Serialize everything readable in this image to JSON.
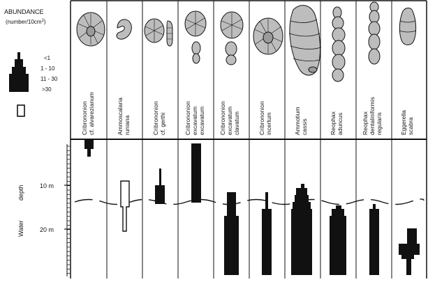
{
  "legend": {
    "title_line1": "ABUNDANCE",
    "title_line2": "(number/10cm",
    "title_sup": "2",
    "title_close": ")",
    "classes": [
      "<1",
      "1 - 10",
      "11 - 30",
      ">30"
    ]
  },
  "axis": {
    "label_water": "Water",
    "label_depth": "depth",
    "ticks": [
      "10 m",
      "20 m"
    ]
  },
  "species": [
    {
      "genus": "Cribrononion",
      "epithet": "cf. alvarezianum"
    },
    {
      "genus": "Ammoscalaria",
      "epithet": "runiana"
    },
    {
      "genus": "Cribrononion",
      "epithet": "cf. gerthi"
    },
    {
      "genus": "Cribrononion",
      "epithet": "excavatum",
      "epithet2": "excavatum"
    },
    {
      "genus": "Cribrononion",
      "epithet": "excavatum",
      "epithet2": "clavatum"
    },
    {
      "genus": "Cribrononion",
      "epithet": "incertum"
    },
    {
      "genus": "Ammotium",
      "epithet": "cassis"
    },
    {
      "genus": "Reophax",
      "epithet": "aduncus"
    },
    {
      "genus": "Reophax",
      "epithet": "dentaliniformis",
      "epithet2": "regularis"
    },
    {
      "genus": "Eggerella",
      "epithet": "scabra"
    }
  ]
}
